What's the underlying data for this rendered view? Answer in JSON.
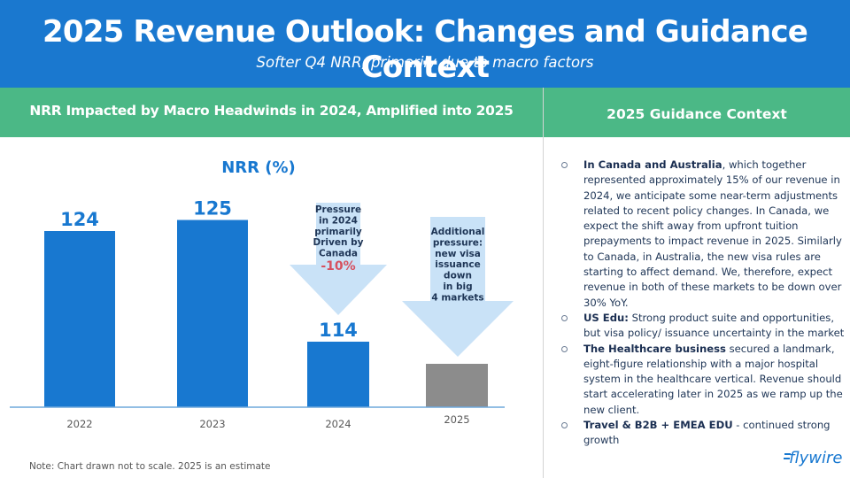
{
  "header": {
    "title": "2025 Revenue Outlook:  Changes and Guidance Context",
    "subtitle": "Softer Q4 NRR, primarily due to macro factors"
  },
  "left_panel": {
    "heading": "NRR Impacted by Macro Headwinds in 2024, Amplified into 2025",
    "note": "Note: Chart drawn not to scale. 2025 is an estimate"
  },
  "right_panel": {
    "heading": "2025 Guidance Context",
    "bullets": [
      {
        "bold": "In Canada and Australia",
        "text": ", which together represented approximately 15% of our revenue in 2024, we anticipate some near-term adjustments related to recent policy changes. In Canada, we expect the shift away from upfront tuition prepayments to impact revenue in 2025. Similarly to Canada, in Australia, the new visa rules are starting to affect demand. We, therefore, expect revenue in both of these markets to be down over 30% YoY."
      },
      {
        "bold": "US Edu:",
        "text": " Strong product suite and opportunities, but visa policy/ issuance  uncertainty in the market"
      },
      {
        "bold": "The Healthcare business",
        "text": "  secured a landmark, eight-figure relationship with a major hospital system in the healthcare vertical. Revenue should start accelerating later in 2025 as we ramp up the new client."
      },
      {
        "bold": "Travel & B2B + EMEA EDU",
        "text": " - continued strong growth"
      }
    ]
  },
  "logo": {
    "text": "flywire",
    "icon": "flywire-logo"
  },
  "colors": {
    "header_blue": "#1a78cf",
    "band_green": "#4bb886",
    "bar_blue": "#1878d0",
    "bar_estimate": "#8c8c8c",
    "arrow_fill": "#c9e2f7",
    "arrow_text": "#1e3556",
    "negative_red": "#d6505f"
  },
  "chart_data": {
    "type": "bar",
    "title": "NRR (%)",
    "xlabel": "",
    "ylabel": "",
    "categories": [
      "2022",
      "2023",
      "2024",
      "2025"
    ],
    "values": [
      124,
      125,
      114,
      null
    ],
    "value_labels": [
      "124",
      "125",
      "114",
      ""
    ],
    "estimate": [
      false,
      false,
      false,
      true
    ],
    "drawn_to_scale": false,
    "grid": false,
    "annotations": [
      {
        "target": "2024",
        "type": "down-arrow",
        "lines": [
          "Pressure",
          "in 2024",
          "primarily",
          "Driven by",
          "Canada"
        ],
        "highlight": "-10%"
      },
      {
        "target": "2025",
        "type": "down-arrow",
        "lines": [
          "Additional",
          "pressure:",
          "new visa",
          "issuance",
          "down",
          "in big",
          "4 markets"
        ],
        "highlight": ""
      }
    ]
  }
}
